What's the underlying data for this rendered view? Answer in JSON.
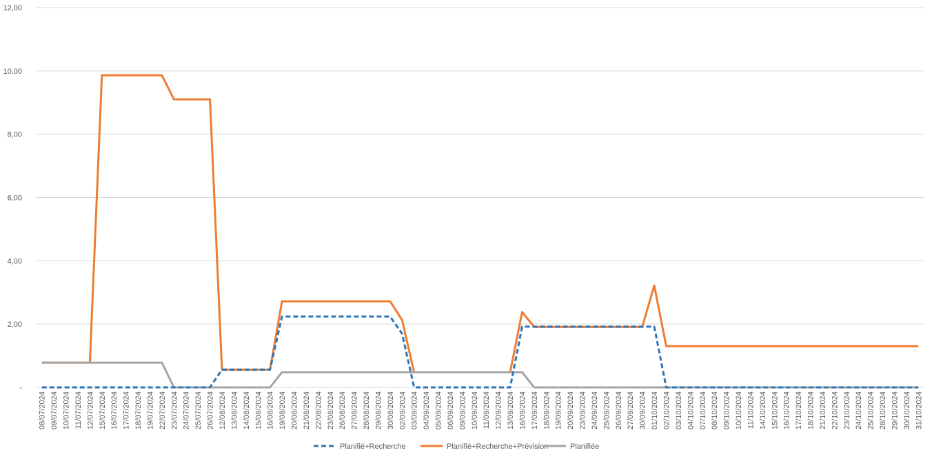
{
  "chart_data": {
    "type": "line",
    "categories": [
      "08/07/2024",
      "09/07/2024",
      "10/07/2024",
      "11/07/2024",
      "12/07/2024",
      "15/07/2024",
      "16/07/2024",
      "17/07/2024",
      "18/07/2024",
      "19/07/2024",
      "22/07/2024",
      "23/07/2024",
      "24/07/2024",
      "25/07/2024",
      "26/07/2024",
      "12/08/2024",
      "13/08/2024",
      "14/08/2024",
      "15/08/2024",
      "16/08/2024",
      "19/08/2024",
      "20/08/2024",
      "21/08/2024",
      "22/08/2024",
      "23/08/2024",
      "26/08/2024",
      "27/08/2024",
      "28/08/2024",
      "29/08/2024",
      "30/08/2024",
      "02/09/2024",
      "03/09/2024",
      "04/09/2024",
      "05/09/2024",
      "06/09/2024",
      "09/09/2024",
      "10/09/2024",
      "11/09/2024",
      "12/09/2024",
      "13/09/2024",
      "16/09/2024",
      "17/09/2024",
      "18/09/2024",
      "19/09/2024",
      "20/09/2024",
      "23/09/2024",
      "24/09/2024",
      "25/09/2024",
      "26/09/2024",
      "27/09/2024",
      "30/09/2024",
      "01/10/2024",
      "02/10/2024",
      "03/10/2024",
      "04/10/2024",
      "07/10/2024",
      "08/10/2024",
      "09/10/2024",
      "10/10/2024",
      "11/10/2024",
      "14/10/2024",
      "15/10/2024",
      "16/10/2024",
      "17/10/2024",
      "18/10/2024",
      "21/10/2024",
      "22/10/2024",
      "23/10/2024",
      "24/10/2024",
      "25/10/2024",
      "28/10/2024",
      "29/10/2024",
      "30/10/2024",
      "31/10/2024"
    ],
    "series": [
      {
        "name": "Planifié+Recherche",
        "color": "#2e75b6",
        "dashed": true,
        "values": [
          0,
          0,
          0,
          0,
          0,
          0,
          0,
          0,
          0,
          0,
          0,
          0,
          0,
          0,
          0,
          0.56,
          0.56,
          0.56,
          0.56,
          0.56,
          2.24,
          2.24,
          2.24,
          2.24,
          2.24,
          2.24,
          2.24,
          2.24,
          2.24,
          2.24,
          1.7,
          0,
          0,
          0,
          0,
          0,
          0,
          0,
          0,
          0,
          1.92,
          1.92,
          1.92,
          1.92,
          1.92,
          1.92,
          1.92,
          1.92,
          1.92,
          1.92,
          1.92,
          1.92,
          0,
          0,
          0,
          0,
          0,
          0,
          0,
          0,
          0,
          0,
          0,
          0,
          0,
          0,
          0,
          0,
          0,
          0,
          0,
          0,
          0,
          0
        ]
      },
      {
        "name": "Planifié+Recherche+Prévision",
        "color": "#ed7d31",
        "dashed": false,
        "values": [
          0.78,
          0.78,
          0.78,
          0.78,
          0.78,
          9.86,
          9.86,
          9.86,
          9.86,
          9.86,
          9.86,
          9.1,
          9.1,
          9.1,
          9.1,
          0.56,
          0.56,
          0.56,
          0.56,
          0.56,
          2.72,
          2.72,
          2.72,
          2.72,
          2.72,
          2.72,
          2.72,
          2.72,
          2.72,
          2.72,
          2.13,
          0.48,
          0.48,
          0.48,
          0.48,
          0.48,
          0.48,
          0.48,
          0.48,
          0.48,
          2.38,
          1.91,
          1.91,
          1.91,
          1.91,
          1.91,
          1.91,
          1.91,
          1.91,
          1.91,
          1.91,
          3.22,
          1.3,
          1.3,
          1.3,
          1.3,
          1.3,
          1.3,
          1.3,
          1.3,
          1.3,
          1.3,
          1.3,
          1.3,
          1.3,
          1.3,
          1.3,
          1.3,
          1.3,
          1.3,
          1.3,
          1.3,
          1.3,
          1.3
        ]
      },
      {
        "name": "Planifiée",
        "color": "#a5a5a5",
        "dashed": false,
        "values": [
          0.78,
          0.78,
          0.78,
          0.78,
          0.78,
          0.78,
          0.78,
          0.78,
          0.78,
          0.78,
          0.78,
          0,
          0,
          0,
          0,
          0,
          0,
          0,
          0,
          0,
          0.48,
          0.48,
          0.48,
          0.48,
          0.48,
          0.48,
          0.48,
          0.48,
          0.48,
          0.48,
          0.48,
          0.48,
          0.48,
          0.48,
          0.48,
          0.48,
          0.48,
          0.48,
          0.48,
          0.48,
          0.48,
          0,
          0,
          0,
          0,
          0,
          0,
          0,
          0,
          0,
          0,
          0,
          0,
          0,
          0,
          0,
          0,
          0,
          0,
          0,
          0,
          0,
          0,
          0,
          0,
          0,
          0,
          0,
          0,
          0,
          0,
          0,
          0,
          0
        ]
      }
    ],
    "ylim": [
      0,
      12
    ],
    "yticks": [
      {
        "value": 0,
        "label": "-"
      },
      {
        "value": 2,
        "label": "2,00"
      },
      {
        "value": 4,
        "label": "4,00"
      },
      {
        "value": 6,
        "label": "6,00"
      },
      {
        "value": 8,
        "label": "8,00"
      },
      {
        "value": 10,
        "label": "10,00"
      },
      {
        "value": 12,
        "label": "12,00"
      }
    ],
    "grid": true,
    "legend": "bottom"
  }
}
